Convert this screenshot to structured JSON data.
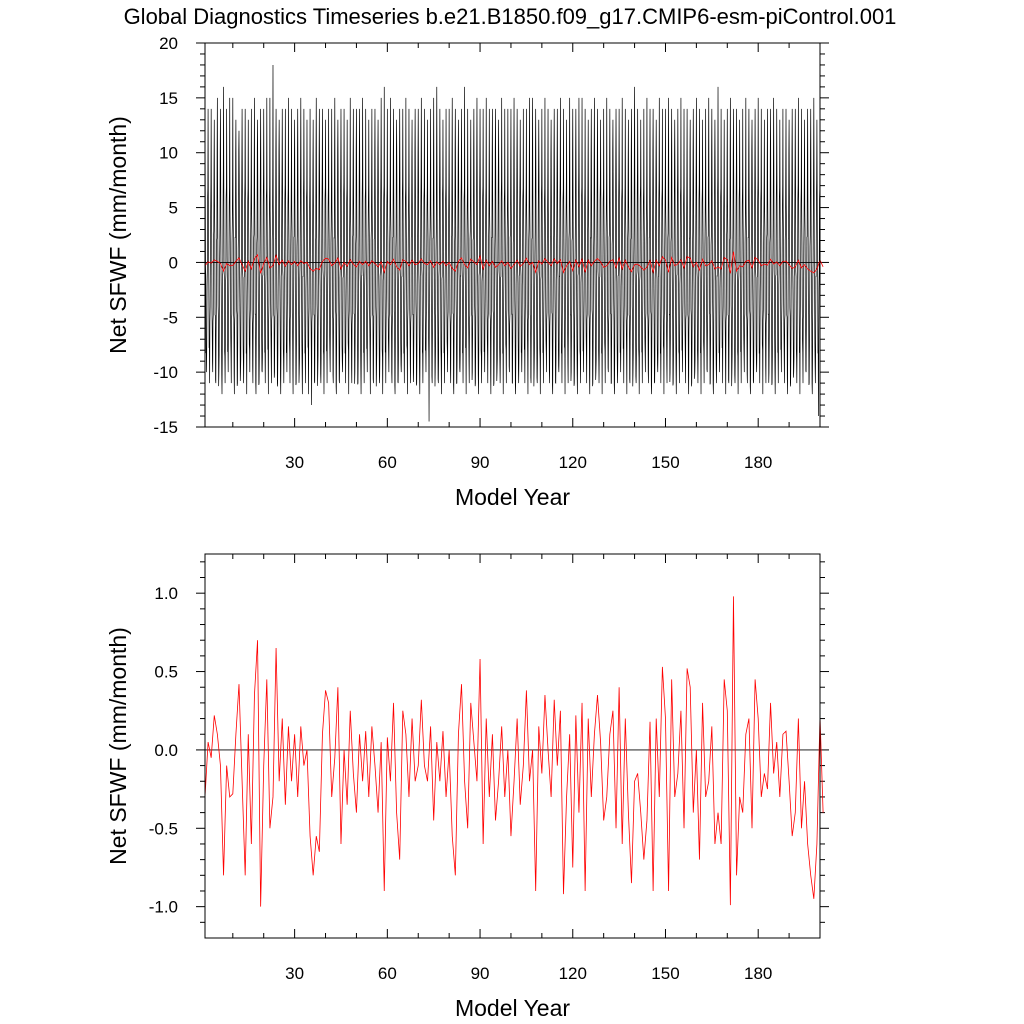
{
  "title": "Global Diagnostics Timeseries b.e21.B1850.f09_g17.CMIP6-esm-piControl.001",
  "colors": {
    "monthly_line": "#000000",
    "annual_line": "#ff0000",
    "zero_line": "#000000",
    "frame": "#000000"
  },
  "chart_data": [
    {
      "type": "line",
      "title": "",
      "xlabel": "Model Year",
      "ylabel": "Net SFWF (mm/month)",
      "xlim": [
        1,
        200
      ],
      "ylim": [
        -15,
        20
      ],
      "xticks": [
        30,
        60,
        90,
        120,
        150,
        180
      ],
      "xtick_labels": [
        "30",
        "60",
        "90",
        "120",
        "150",
        "180"
      ],
      "yticks": [
        -15,
        -10,
        -5,
        0,
        5,
        10,
        15,
        20
      ],
      "ytick_labels": [
        "-15",
        "-10",
        "-5",
        "0",
        "5",
        "10",
        "15",
        "20"
      ],
      "reference_line": 0,
      "series": [
        {
          "kind": "monthly",
          "color": "#000000",
          "annual_cycle_offsets": [
            12.5,
            6.5,
            1.0,
            -3.0,
            -6.5,
            -9.5,
            -10.5,
            -7.0,
            -3.0,
            0.5,
            4.0,
            8.5
          ],
          "annual_peaks": [
            14,
            14,
            14,
            13,
            15,
            14,
            16,
            14,
            15,
            15,
            13,
            12,
            14,
            14,
            13,
            14,
            15,
            13,
            14,
            14,
            15,
            15,
            18,
            14,
            13,
            14,
            14,
            15,
            14,
            13,
            14,
            15,
            14,
            13,
            14,
            13,
            15,
            14,
            14,
            13,
            14,
            14,
            15,
            13,
            14,
            14,
            13,
            15,
            14,
            14,
            14,
            15,
            14,
            13,
            14,
            14,
            13,
            15,
            16,
            14,
            15,
            14,
            13,
            14,
            14,
            15,
            14,
            13,
            14,
            14,
            15,
            14,
            13,
            14,
            15,
            16,
            14,
            13,
            14,
            14,
            15,
            14,
            13,
            14,
            16,
            14,
            13,
            14,
            15,
            14,
            14,
            15,
            14,
            14,
            14,
            13,
            15,
            14,
            14,
            14,
            15,
            14,
            13,
            14,
            14,
            15,
            15,
            14,
            13,
            14,
            15,
            14,
            13,
            14,
            14,
            15,
            14,
            13,
            15,
            14,
            14,
            15,
            15,
            14,
            13,
            14,
            15,
            14,
            13,
            14,
            15,
            14,
            13,
            14,
            14,
            15,
            14,
            13,
            14,
            16,
            14,
            13,
            14,
            15,
            14,
            14,
            13,
            15,
            14,
            14,
            15,
            14,
            13,
            14,
            15,
            14,
            14,
            13,
            14,
            15,
            14,
            13,
            14,
            15,
            14,
            13,
            16,
            14,
            13,
            14,
            15,
            14,
            14,
            13,
            14,
            15,
            14,
            13,
            14,
            15,
            14,
            13,
            14,
            14,
            15,
            14,
            13,
            14,
            14,
            13,
            14,
            14,
            15,
            14,
            13,
            14,
            14,
            15,
            13,
            13
          ],
          "annual_troughs": [
            -10,
            -11,
            -10,
            -11,
            -10,
            -12,
            -11,
            -10,
            -11,
            -12,
            -11,
            -10,
            -11,
            -12,
            -10,
            -11,
            -12,
            -11,
            -10,
            -11,
            -12,
            -11,
            -10,
            -11,
            -12,
            -11,
            -10,
            -11,
            -12,
            -11,
            -10,
            -12,
            -11,
            -12,
            -13,
            -11,
            -10,
            -11,
            -12,
            -11,
            -10,
            -11,
            -12,
            -11,
            -10,
            -11,
            -12,
            -11,
            -10,
            -11,
            -12,
            -11,
            -10,
            -12,
            -11,
            -10,
            -11,
            -12,
            -11,
            -10,
            -11,
            -12,
            -11,
            -10,
            -11,
            -12,
            -11,
            -10,
            -11,
            -12,
            -11,
            -10,
            -14.5,
            -11,
            -10,
            -11,
            -12,
            -11,
            -10,
            -11,
            -12,
            -11,
            -10,
            -11,
            -12,
            -11,
            -10,
            -11,
            -12,
            -11,
            -10,
            -11,
            -12,
            -11,
            -10,
            -11,
            -12,
            -11,
            -10,
            -11,
            -12,
            -11,
            -10,
            -11,
            -12,
            -11,
            -10,
            -11,
            -12,
            -11,
            -10,
            -11,
            -12,
            -11,
            -10,
            -11,
            -12,
            -11,
            -10,
            -11,
            -12,
            -11,
            -10,
            -11,
            -12,
            -11,
            -10,
            -11,
            -12,
            -11,
            -10,
            -11,
            -12,
            -11,
            -10,
            -11,
            -12,
            -11,
            -10,
            -11,
            -12,
            -11,
            -10,
            -11,
            -12,
            -11,
            -10,
            -11,
            -12,
            -11,
            -10,
            -11,
            -12,
            -11,
            -10,
            -11,
            -12,
            -11,
            -10,
            -11,
            -12,
            -11,
            -10,
            -11,
            -12,
            -11,
            -10,
            -11,
            -12,
            -11,
            -10,
            -11,
            -12,
            -11,
            -10,
            -11,
            -12,
            -11,
            -10,
            -11,
            -12,
            -11,
            -10,
            -11,
            -12,
            -11,
            -10,
            -11,
            -12,
            -11,
            -10,
            -11,
            -12,
            -11,
            -10,
            -11,
            -12,
            -11,
            -14,
            -11,
            -10,
            -11
          ]
        },
        {
          "kind": "annual",
          "color": "#ff0000",
          "x_start": 1,
          "values": [
            -0.3,
            0.05,
            -0.05,
            0.22,
            0.1,
            -0.1,
            -0.8,
            -0.1,
            -0.3,
            -0.28,
            0.1,
            0.42,
            -0.2,
            -0.8,
            0.1,
            -0.6,
            0.35,
            0.7,
            -1.0,
            -0.1,
            0.45,
            -0.5,
            -0.3,
            0.65,
            -0.2,
            0.2,
            -0.35,
            0.15,
            -0.2,
            0.1,
            -0.3,
            0.15,
            -0.1,
            0.0,
            -0.55,
            -0.8,
            -0.55,
            -0.65,
            0.1,
            0.38,
            0.3,
            -0.3,
            -0.05,
            0.4,
            -0.6,
            0.0,
            -0.35,
            0.25,
            -0.15,
            -0.4,
            0.1,
            -0.2,
            0.12,
            -0.3,
            0.15,
            -0.1,
            -0.4,
            0.05,
            -0.9,
            0.08,
            -0.2,
            0.3,
            -0.4,
            -0.7,
            0.25,
            0.1,
            -0.3,
            0.2,
            -0.2,
            -0.1,
            0.32,
            -0.1,
            -0.2,
            0.15,
            -0.45,
            0.05,
            -0.2,
            0.12,
            -0.3,
            0.0,
            -0.55,
            -0.8,
            0.1,
            0.42,
            -0.2,
            -0.5,
            0.3,
            0.05,
            -0.2,
            0.58,
            -0.6,
            0.2,
            -0.3,
            0.1,
            -0.45,
            -0.2,
            0.15,
            -0.3,
            0.0,
            -0.55,
            -0.2,
            0.2,
            -0.35,
            -0.1,
            0.38,
            -0.2,
            0.0,
            -0.9,
            0.15,
            -0.15,
            0.35,
            0.0,
            -0.3,
            0.32,
            -0.1,
            0.25,
            -0.92,
            -0.3,
            0.1,
            -0.75,
            0.22,
            -0.4,
            0.3,
            -0.9,
            0.2,
            -0.3,
            0.1,
            0.35,
            0.05,
            -0.45,
            -0.3,
            0.1,
            0.25,
            -0.5,
            0.4,
            -0.6,
            0.2,
            -0.4,
            -0.85,
            -0.2,
            -0.15,
            -0.4,
            -0.7,
            -0.45,
            0.18,
            -0.9,
            0.2,
            -0.3,
            0.53,
            0.2,
            -0.9,
            0.45,
            -0.3,
            -0.15,
            0.25,
            -0.5,
            0.52,
            0.4,
            -0.4,
            0.0,
            -0.7,
            0.3,
            -0.3,
            -0.2,
            0.15,
            -0.6,
            -0.4,
            -0.6,
            0.45,
            0.25,
            -0.99,
            0.98,
            -0.8,
            -0.3,
            -0.4,
            0.1,
            0.2,
            -0.5,
            0.45,
            0.2,
            -0.3,
            -0.15,
            -0.25,
            0.3,
            -0.15,
            0.05,
            -0.3,
            0.1,
            0.12,
            -0.2,
            -0.55,
            -0.4,
            0.2,
            -0.5,
            -0.2,
            -0.6,
            -0.8,
            -0.95,
            -0.6,
            0.22,
            -0.4
          ]
        }
      ]
    },
    {
      "type": "line",
      "title": "",
      "xlabel": "Model Year",
      "ylabel": "Net SFWF (mm/month)",
      "xlim": [
        1,
        200
      ],
      "ylim": [
        -1.2,
        1.25
      ],
      "xticks": [
        30,
        60,
        90,
        120,
        150,
        180
      ],
      "xtick_labels": [
        "30",
        "60",
        "90",
        "120",
        "150",
        "180"
      ],
      "yticks": [
        -1.0,
        -0.5,
        0.0,
        0.5,
        1.0
      ],
      "ytick_labels": [
        "-1.0",
        "-0.5",
        "0.0",
        "0.5",
        "1.0"
      ],
      "reference_line": 0,
      "series": [
        {
          "kind": "annual",
          "color": "#ff0000",
          "x_start": 1,
          "values": [
            -0.3,
            0.05,
            -0.05,
            0.22,
            0.1,
            -0.1,
            -0.8,
            -0.1,
            -0.3,
            -0.28,
            0.1,
            0.42,
            -0.2,
            -0.8,
            0.1,
            -0.6,
            0.35,
            0.7,
            -1.0,
            -0.1,
            0.45,
            -0.5,
            -0.3,
            0.65,
            -0.2,
            0.2,
            -0.35,
            0.15,
            -0.2,
            0.1,
            -0.3,
            0.15,
            -0.1,
            0.0,
            -0.55,
            -0.8,
            -0.55,
            -0.65,
            0.1,
            0.38,
            0.3,
            -0.3,
            -0.05,
            0.4,
            -0.6,
            0.0,
            -0.35,
            0.25,
            -0.15,
            -0.4,
            0.1,
            -0.2,
            0.12,
            -0.3,
            0.15,
            -0.1,
            -0.4,
            0.05,
            -0.9,
            0.08,
            -0.2,
            0.3,
            -0.4,
            -0.7,
            0.25,
            0.1,
            -0.3,
            0.2,
            -0.2,
            -0.1,
            0.32,
            -0.1,
            -0.2,
            0.15,
            -0.45,
            0.05,
            -0.2,
            0.12,
            -0.3,
            0.0,
            -0.55,
            -0.8,
            0.1,
            0.42,
            -0.2,
            -0.5,
            0.3,
            0.05,
            -0.2,
            0.58,
            -0.6,
            0.2,
            -0.3,
            0.1,
            -0.45,
            -0.2,
            0.15,
            -0.3,
            0.0,
            -0.55,
            -0.2,
            0.2,
            -0.35,
            -0.1,
            0.38,
            -0.2,
            0.0,
            -0.9,
            0.15,
            -0.15,
            0.35,
            0.0,
            -0.3,
            0.32,
            -0.1,
            0.25,
            -0.92,
            -0.3,
            0.1,
            -0.75,
            0.22,
            -0.4,
            0.3,
            -0.9,
            0.2,
            -0.3,
            0.1,
            0.35,
            0.05,
            -0.45,
            -0.3,
            0.1,
            0.25,
            -0.5,
            0.4,
            -0.6,
            0.2,
            -0.4,
            -0.85,
            -0.2,
            -0.15,
            -0.4,
            -0.7,
            -0.45,
            0.18,
            -0.9,
            0.2,
            -0.3,
            0.53,
            0.2,
            -0.9,
            0.45,
            -0.3,
            -0.15,
            0.25,
            -0.5,
            0.52,
            0.4,
            -0.4,
            0.0,
            -0.7,
            0.3,
            -0.3,
            -0.2,
            0.15,
            -0.6,
            -0.4,
            -0.6,
            0.45,
            0.25,
            -0.99,
            0.98,
            -0.8,
            -0.3,
            -0.4,
            0.1,
            0.2,
            -0.5,
            0.45,
            0.2,
            -0.3,
            -0.15,
            -0.25,
            0.3,
            -0.15,
            0.05,
            -0.3,
            0.1,
            0.12,
            -0.2,
            -0.55,
            -0.4,
            0.2,
            -0.5,
            -0.2,
            -0.6,
            -0.8,
            -0.95,
            -0.6,
            0.22,
            -0.4
          ]
        }
      ]
    }
  ]
}
